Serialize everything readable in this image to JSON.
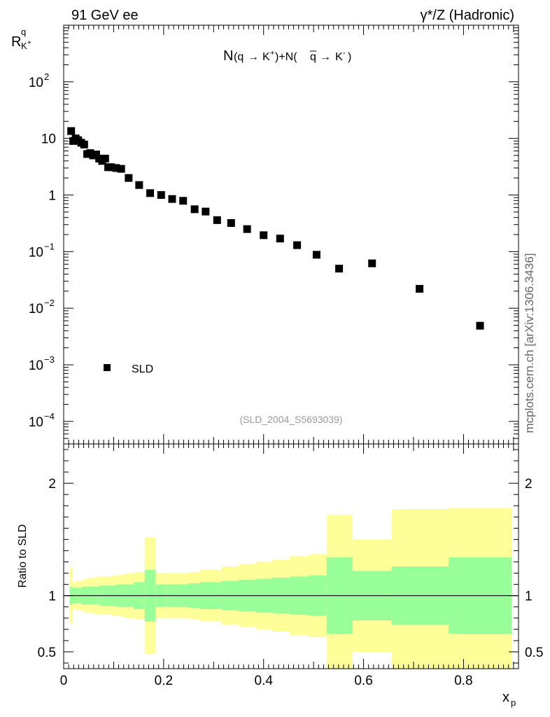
{
  "header": {
    "left": "91 GeV ee",
    "right": "γ*/Z (Hadronic)"
  },
  "side_label": "mcplots.cern.ch [arXiv:1306.3436]",
  "analysis_id": "(SLD_2004_S5693039)",
  "colors": {
    "band_inner": "#99ff99",
    "band_outer": "#ffff99",
    "marker": "#000000"
  },
  "chart_data": [
    {
      "type": "scatter",
      "title": "N(q→ K⁺)+N(q̄→ K⁻)",
      "ylabel": "R^q_K+",
      "y_scale": "log",
      "ylim": [
        4e-05,
        1000
      ],
      "xlim": [
        0,
        0.91
      ],
      "y_tick_labels": [
        "10⁻⁴",
        "10⁻³",
        "10⁻²",
        "10⁻¹",
        "1",
        "10",
        "10²"
      ],
      "legend": {
        "entries": [
          "SLD"
        ],
        "position": "bottom-left"
      },
      "series": [
        {
          "name": "SLD",
          "marker": "square",
          "x": [
            0.015,
            0.019,
            0.024,
            0.029,
            0.035,
            0.041,
            0.047,
            0.053,
            0.059,
            0.065,
            0.071,
            0.077,
            0.083,
            0.089,
            0.095,
            0.105,
            0.115,
            0.13,
            0.151,
            0.173,
            0.195,
            0.217,
            0.239,
            0.262,
            0.284,
            0.307,
            0.335,
            0.367,
            0.4,
            0.433,
            0.467,
            0.506,
            0.551,
            0.617,
            0.712,
            0.833
          ],
          "y": [
            13.5,
            9.0,
            10.0,
            9.3,
            8.4,
            7.8,
            5.3,
            5.5,
            5.0,
            5.2,
            4.4,
            4.0,
            4.4,
            3.1,
            3.1,
            3.0,
            2.9,
            2.0,
            1.5,
            1.08,
            1.0,
            0.85,
            0.79,
            0.56,
            0.51,
            0.36,
            0.32,
            0.25,
            0.195,
            0.17,
            0.13,
            0.088,
            0.05,
            0.062,
            0.022,
            0.0049
          ]
        }
      ]
    },
    {
      "type": "area",
      "ylabel": "Ratio to SLD",
      "xlabel": "x_p",
      "xlim": [
        0,
        0.91
      ],
      "ylim": [
        0.35,
        2.35
      ],
      "x_ticks": [
        0,
        0.2,
        0.4,
        0.6,
        0.8
      ],
      "x_tick_labels": [
        "0",
        "0.2",
        "0.4",
        "0.6",
        "0.8"
      ],
      "y_ticks": [
        0.5,
        1,
        2
      ],
      "y_tick_labels": [
        "0.5",
        "1",
        "2"
      ],
      "reference_line": 1,
      "bins": {
        "edges": [
          0.012,
          0.018,
          0.024,
          0.03,
          0.036,
          0.042,
          0.048,
          0.054,
          0.06,
          0.066,
          0.072,
          0.078,
          0.084,
          0.09,
          0.096,
          0.104,
          0.114,
          0.124,
          0.14,
          0.162,
          0.184,
          0.206,
          0.228,
          0.25,
          0.272,
          0.294,
          0.316,
          0.35,
          0.384,
          0.418,
          0.452,
          0.49,
          0.526,
          0.578,
          0.656,
          0.77,
          0.896
        ],
        "inner": [
          0.08,
          0.07,
          0.07,
          0.07,
          0.08,
          0.08,
          0.08,
          0.08,
          0.08,
          0.08,
          0.09,
          0.09,
          0.09,
          0.09,
          0.09,
          0.1,
          0.1,
          0.1,
          0.12,
          0.23,
          0.1,
          0.1,
          0.1,
          0.11,
          0.12,
          0.12,
          0.13,
          0.14,
          0.15,
          0.16,
          0.17,
          0.18,
          0.34,
          0.22,
          0.26,
          0.34,
          1.0
        ],
        "outer": [
          0.25,
          0.12,
          0.13,
          0.13,
          0.14,
          0.15,
          0.15,
          0.16,
          0.16,
          0.17,
          0.17,
          0.17,
          0.17,
          0.17,
          0.18,
          0.18,
          0.19,
          0.2,
          0.21,
          0.52,
          0.2,
          0.2,
          0.2,
          0.21,
          0.23,
          0.23,
          0.26,
          0.28,
          0.3,
          0.32,
          0.35,
          0.37,
          0.72,
          0.5,
          0.77,
          0.78,
          1.0
        ]
      }
    }
  ]
}
